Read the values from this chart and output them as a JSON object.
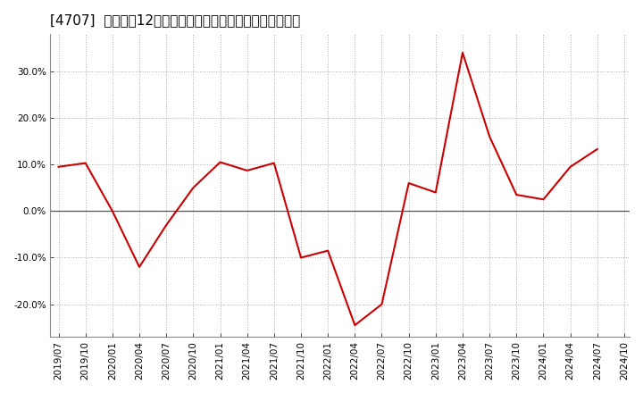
{
  "title": "[4707]  売上高の12か月移動合計の対前年同期増減率の推移",
  "line_color": "#cc0000",
  "background_color": "#ffffff",
  "plot_bg_color": "#ffffff",
  "grid_color": "#aaaaaa",
  "zero_line_color": "#555555",
  "ylim": [
    -0.27,
    0.38
  ],
  "yticks": [
    -0.2,
    -0.1,
    0.0,
    0.1,
    0.2,
    0.3
  ],
  "ytick_labels": [
    "-20.0%",
    "-10.0%",
    "0.0%",
    "10.0%",
    "20.0%",
    "30.0%"
  ],
  "dates": [
    "2019/07",
    "2019/10",
    "2020/01",
    "2020/04",
    "2020/07",
    "2020/10",
    "2021/01",
    "2021/04",
    "2021/07",
    "2021/10",
    "2022/01",
    "2022/04",
    "2022/07",
    "2022/10",
    "2023/01",
    "2023/04",
    "2023/07",
    "2023/10",
    "2024/01",
    "2024/04",
    "2024/07"
  ],
  "values": [
    0.095,
    0.103,
    0.0,
    -0.12,
    -0.03,
    0.05,
    0.105,
    0.087,
    0.103,
    -0.1,
    -0.085,
    -0.245,
    -0.2,
    0.06,
    0.04,
    0.34,
    0.16,
    0.035,
    0.025,
    0.095,
    0.133
  ],
  "xtick_labels": [
    "2019/07",
    "2019/10",
    "2020/01",
    "2020/04",
    "2020/07",
    "2020/10",
    "2021/01",
    "2021/04",
    "2021/07",
    "2021/10",
    "2022/01",
    "2022/04",
    "2022/07",
    "2022/10",
    "2023/01",
    "2023/04",
    "2023/07",
    "2023/10",
    "2024/01",
    "2024/04",
    "2024/07",
    "2024/10"
  ],
  "title_fontsize": 11,
  "tick_fontsize": 7.5,
  "line_width": 1.5,
  "fig_width": 7.2,
  "fig_height": 4.4,
  "dpi": 100
}
